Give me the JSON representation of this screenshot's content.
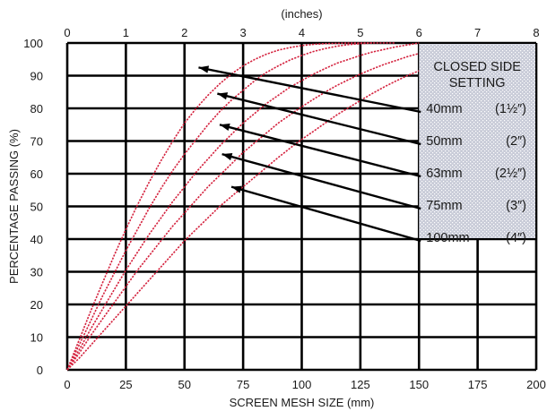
{
  "chart_data": {
    "type": "line",
    "title": "",
    "xlabel": "SCREEN MESH SIZE (mm)",
    "x2label": "(inches)",
    "ylabel": "PERCENTAGE PASSING (%)",
    "xlim": [
      0,
      200
    ],
    "x2lim": [
      0,
      8
    ],
    "ylim": [
      0,
      100
    ],
    "grid": true,
    "x_ticks": [
      "0",
      "25",
      "50",
      "75",
      "100",
      "125",
      "150",
      "175",
      "200"
    ],
    "x2_ticks": [
      "0",
      "1",
      "2",
      "3",
      "4",
      "5",
      "6",
      "7",
      "8"
    ],
    "y_ticks": [
      "0",
      "10",
      "20",
      "30",
      "40",
      "50",
      "60",
      "70",
      "80",
      "90",
      "100"
    ],
    "legend_title": [
      "CLOSED SIDE",
      "SETTING"
    ],
    "legend_placement": "top-right",
    "colors": {
      "curve": "#d4213d",
      "grid": "#000000",
      "legend_bg": "#c9ccd8",
      "legend_dot": "#ffffff"
    },
    "series": [
      {
        "name": "40mm",
        "inch": "1½″",
        "x": [
          0,
          5,
          10,
          15,
          20,
          25,
          30,
          35,
          40,
          45,
          50,
          55,
          60,
          65,
          70,
          75,
          80,
          85,
          90,
          95,
          100,
          105,
          110,
          115,
          120,
          125,
          130
        ],
        "y": [
          0,
          9,
          18,
          26.5,
          35,
          43,
          50.5,
          57.5,
          64,
          70,
          75.5,
          80,
          84,
          87.5,
          90.5,
          93,
          95,
          96.6,
          97.8,
          98.6,
          99.2,
          99.6,
          99.8,
          99.9,
          100,
          100,
          100
        ],
        "label_point": [
          56,
          92.5
        ]
      },
      {
        "name": "50mm",
        "inch": "2″",
        "x": [
          0,
          5,
          10,
          15,
          20,
          25,
          30,
          35,
          40,
          45,
          50,
          55,
          60,
          65,
          70,
          75,
          80,
          85,
          90,
          95,
          100,
          105,
          110,
          115,
          120,
          125,
          130,
          135,
          140
        ],
        "y": [
          0,
          7.5,
          15,
          22.5,
          29.5,
          36.5,
          43,
          49.5,
          55.5,
          61,
          66,
          70.5,
          75,
          79,
          82.5,
          85.5,
          88.5,
          91,
          93,
          94.8,
          96.2,
          97.4,
          98.3,
          99,
          99.5,
          99.8,
          100,
          100,
          100
        ],
        "label_point": [
          64,
          84.5
        ]
      },
      {
        "name": "63mm",
        "inch": "2½″",
        "x": [
          0,
          5,
          10,
          15,
          20,
          25,
          30,
          35,
          40,
          45,
          50,
          55,
          60,
          65,
          70,
          75,
          80,
          85,
          90,
          95,
          100,
          105,
          110,
          115,
          120,
          125,
          130,
          135,
          140,
          145,
          150
        ],
        "y": [
          0,
          6,
          12.5,
          18.5,
          24.5,
          30.5,
          36,
          41.5,
          46.5,
          51.5,
          56,
          60.5,
          64.5,
          68.5,
          72,
          75.5,
          78.5,
          81.5,
          84,
          86.5,
          88.5,
          90.5,
          92.2,
          93.8,
          95,
          96.2,
          97.2,
          98,
          98.8,
          99.4,
          100
        ],
        "label_point": [
          65,
          75
        ]
      },
      {
        "name": "75mm",
        "inch": "3″",
        "x": [
          0,
          5,
          10,
          15,
          20,
          25,
          30,
          35,
          40,
          45,
          50,
          55,
          60,
          65,
          70,
          75,
          80,
          85,
          90,
          95,
          100,
          105,
          110,
          115,
          120,
          125,
          130,
          135,
          140,
          145,
          150
        ],
        "y": [
          0,
          5,
          10.5,
          15.5,
          20.5,
          25.5,
          30.5,
          35,
          39.5,
          44,
          48,
          52,
          56,
          59.5,
          63,
          66.5,
          69.5,
          72.5,
          75.5,
          78,
          80.5,
          82.8,
          85,
          87,
          88.8,
          90.5,
          92,
          93.4,
          94.6,
          95.8,
          96.8
        ],
        "label_point": [
          66,
          66
        ]
      },
      {
        "name": "100mm",
        "inch": "4″",
        "x": [
          0,
          5,
          10,
          15,
          20,
          25,
          30,
          35,
          40,
          45,
          50,
          55,
          60,
          65,
          70,
          75,
          80,
          85,
          90,
          95,
          100,
          105,
          110,
          115,
          120,
          125,
          130,
          135,
          140,
          145,
          150
        ],
        "y": [
          0,
          3.5,
          7.5,
          11.5,
          15.5,
          19.5,
          23.5,
          27.5,
          31.5,
          35.5,
          39.5,
          43,
          46.5,
          50,
          53,
          56,
          59,
          62,
          65,
          67.8,
          70.5,
          73,
          75.5,
          78,
          80.2,
          82.4,
          84.5,
          86.5,
          88.3,
          90,
          91.5
        ],
        "label_point": [
          70,
          56
        ]
      }
    ]
  }
}
